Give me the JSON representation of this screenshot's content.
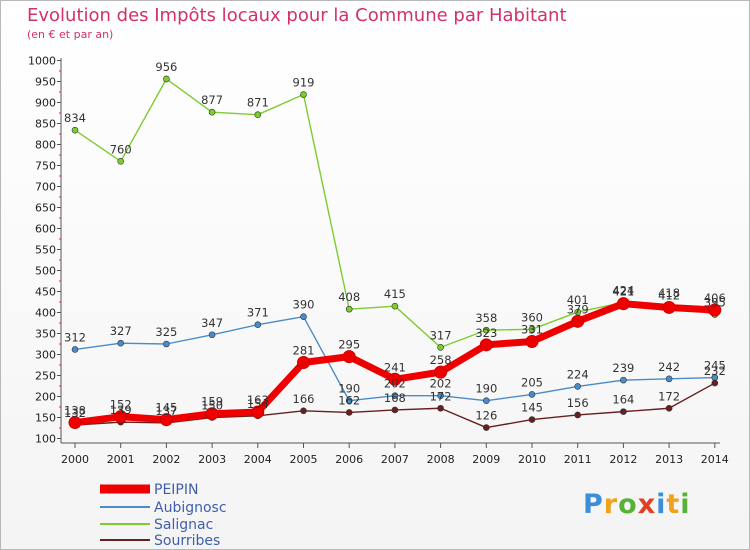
{
  "header": {
    "title": "Evolution des Impôts locaux pour la Commune par Habitant",
    "subtitle": "(en € et par an)"
  },
  "logo": {
    "letters": [
      "P",
      "r",
      "o",
      "x",
      "i",
      "t",
      "i"
    ],
    "colors": [
      "#3b8fd8",
      "#f0a21b",
      "#58b23a",
      "#e04020",
      "#3b8fd8",
      "#f0a21b",
      "#58b23a"
    ]
  },
  "chart_data": {
    "type": "line",
    "title": "Evolution des Impôts locaux pour la Commune par Habitant",
    "subtitle": "(en € et par an)",
    "x": [
      "2000",
      "2001",
      "2002",
      "2003",
      "2004",
      "2005",
      "2006",
      "2007",
      "2008",
      "2009",
      "2010",
      "2011",
      "2012",
      "2013",
      "2014"
    ],
    "ylim": [
      100,
      1000
    ],
    "yticks": [
      100,
      150,
      200,
      250,
      300,
      350,
      400,
      450,
      500,
      550,
      600,
      650,
      700,
      750,
      800,
      850,
      900,
      950,
      1000
    ],
    "grid": false,
    "legend_position": "bottom-left",
    "series": [
      {
        "name": "PEIPIN",
        "color": "#ee0000",
        "values": [
          138,
          152,
          145,
          159,
          163,
          281,
          295,
          241,
          258,
          323,
          331,
          379,
          421,
          412,
          406
        ],
        "labels": [
          "138",
          "152",
          "145",
          "159",
          "163",
          "281",
          "295",
          "241",
          "258",
          "323",
          "331",
          "379",
          "421",
          "412",
          "406"
        ]
      },
      {
        "name": "Aubignosc",
        "color": "#4a8cc8",
        "values": [
          312,
          327,
          325,
          347,
          371,
          390,
          190,
          202,
          202,
          190,
          205,
          224,
          239,
          242,
          245
        ],
        "labels": [
          "312",
          "327",
          "325",
          "347",
          "371",
          "390",
          "190",
          "202",
          "202",
          "190",
          "205",
          "224",
          "239",
          "242",
          "245"
        ]
      },
      {
        "name": "Salignac",
        "color": "#7dcc30",
        "values": [
          834,
          760,
          956,
          877,
          871,
          919,
          408,
          415,
          317,
          358,
          360,
          401,
          424,
          418,
          395
        ],
        "labels": [
          "834",
          "760",
          "956",
          "877",
          "871",
          "919",
          "408",
          "415",
          "317",
          "358",
          "360",
          "401",
          "424",
          "418",
          "395"
        ]
      },
      {
        "name": "Sourribes",
        "color": "#6a1f1f",
        "values": [
          132,
          139,
          137,
          150,
          154,
          166,
          162,
          168,
          172,
          126,
          145,
          156,
          164,
          172,
          232
        ],
        "labels": [
          "132",
          "139",
          "137",
          "150",
          "154",
          "166",
          "162",
          "168",
          "172",
          "126",
          "145",
          "156",
          "164",
          "172",
          "232"
        ]
      }
    ]
  }
}
